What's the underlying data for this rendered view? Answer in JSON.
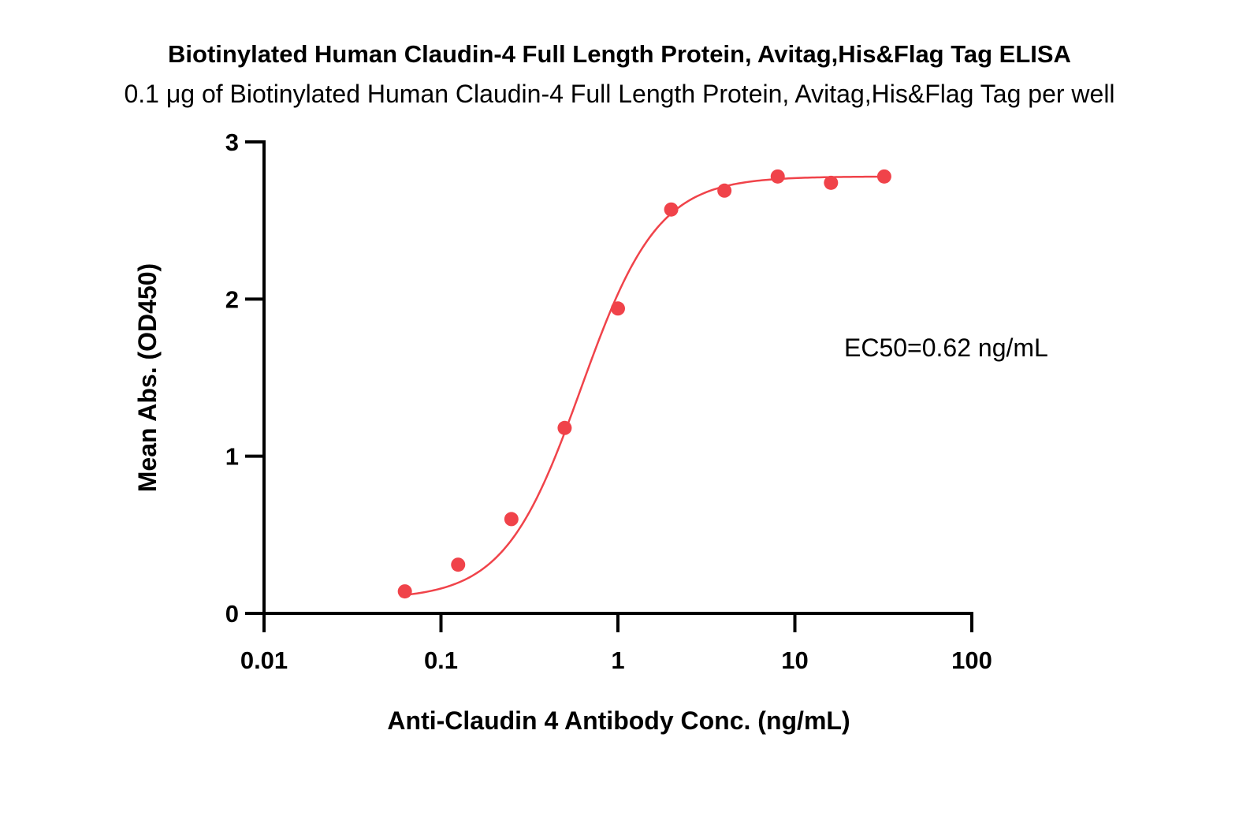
{
  "chart_data": {
    "type": "scatter",
    "title": "Biotinylated Human Claudin-4 Full Length Protein, Avitag,His&Flag Tag ELISA",
    "subtitle": "0.1 μg of Biotinylated Human Claudin-4 Full Length Protein, Avitag,His&Flag Tag per well",
    "xlabel": "Anti-Claudin 4 Antibody Conc. (ng/mL)",
    "ylabel": "Mean Abs. (OD450)",
    "xscale": "log",
    "xlim": [
      0.01,
      100
    ],
    "ylim": [
      0,
      3
    ],
    "x_ticks": [
      0.01,
      0.1,
      1,
      10,
      100
    ],
    "x_tick_labels": [
      "0.01",
      "0.1",
      "1",
      "10",
      "100"
    ],
    "y_ticks": [
      0,
      1,
      2,
      3
    ],
    "y_tick_labels": [
      "0",
      "1",
      "2",
      "3"
    ],
    "grid": false,
    "legend": "none",
    "color": "#f0434a",
    "series": [
      {
        "x": [
          0.0625,
          0.125,
          0.25,
          0.5,
          1,
          2,
          4,
          8,
          16,
          32
        ],
        "y": [
          0.14,
          0.31,
          0.6,
          1.18,
          1.94,
          2.57,
          2.69,
          2.78,
          2.74,
          2.78
        ]
      }
    ],
    "fit": {
      "model": "4PL",
      "bottom": 0.09,
      "top": 2.78,
      "ec50": 0.62,
      "hill": 2.0
    },
    "annotations": [
      {
        "text": "EC50=0.62 ng/mL"
      }
    ]
  }
}
